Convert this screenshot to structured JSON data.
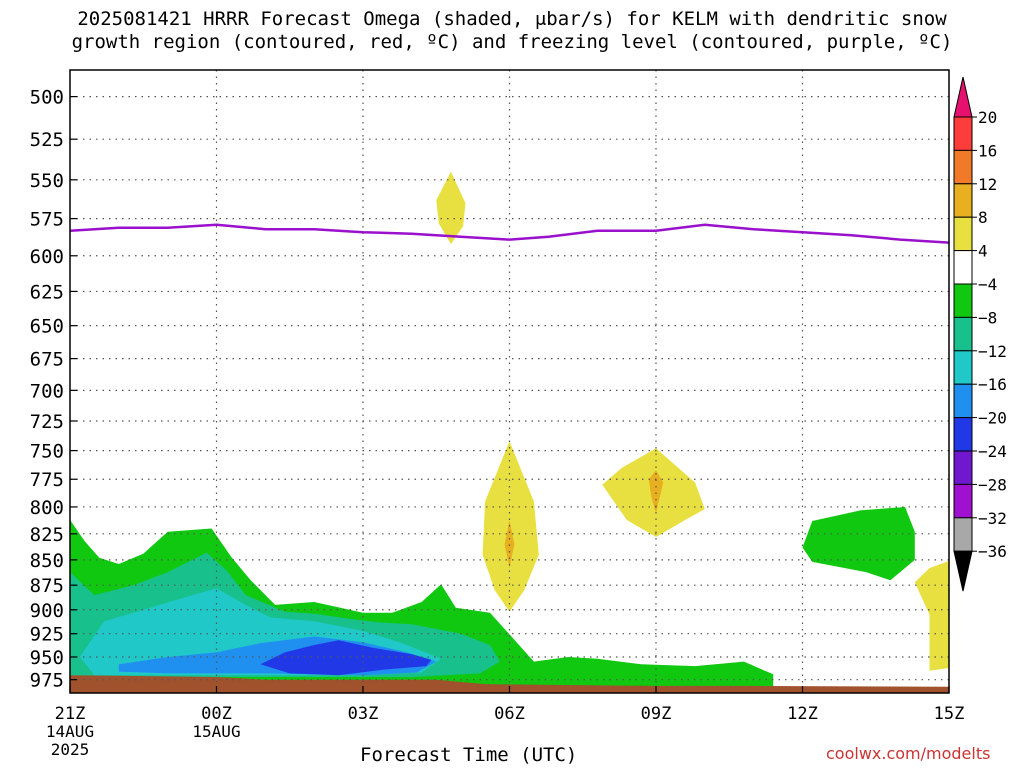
{
  "title": {
    "line1": "2025081421 HRRR Forecast Omega (shaded, μbar/s) for KELM with dendritic snow",
    "line2": "growth region (contoured, red, ºC) and freezing level (contoured, purple, ºC)"
  },
  "credit": "coolwx.com/modelts",
  "chart_data": {
    "type": "heatmap",
    "xlabel": "Forecast Time (UTC)",
    "x_ticks": [
      {
        "hour": 0,
        "label": "21Z",
        "sub": [
          "14AUG",
          "2025"
        ]
      },
      {
        "hour": 3,
        "label": "00Z",
        "sub": [
          "15AUG"
        ]
      },
      {
        "hour": 6,
        "label": "03Z",
        "sub": []
      },
      {
        "hour": 9,
        "label": "06Z",
        "sub": []
      },
      {
        "hour": 12,
        "label": "09Z",
        "sub": []
      },
      {
        "hour": 15,
        "label": "12Z",
        "sub": []
      },
      {
        "hour": 18,
        "label": "15Z",
        "sub": []
      }
    ],
    "xlim": [
      0,
      18
    ],
    "ylabel": "",
    "y_ticks": [
      500,
      525,
      550,
      575,
      600,
      625,
      650,
      675,
      700,
      725,
      750,
      775,
      800,
      825,
      850,
      875,
      900,
      925,
      950,
      975
    ],
    "ylim_hpa": [
      990,
      485
    ],
    "y_scale": "log-pressure",
    "grid": true,
    "colorbar": {
      "labels": [
        "20",
        "16",
        "12",
        "8",
        "4",
        "−4",
        "−8",
        "−12",
        "−16",
        "−20",
        "−24",
        "−28",
        "−32",
        "−36"
      ],
      "levels": [
        24,
        20,
        16,
        12,
        8,
        4,
        -4,
        -8,
        -12,
        -16,
        -20,
        -24,
        -28,
        -32,
        -36
      ],
      "colors": [
        "#e6106e",
        "#ff3c3c",
        "#f07a28",
        "#e8b020",
        "#e8e040",
        "#ffffff",
        "#10c810",
        "#18c08c",
        "#20c8c8",
        "#2090f0",
        "#2038e6",
        "#7018d0",
        "#a010d0",
        "#a8a8a8"
      ]
    },
    "freezing_level": {
      "color": "#9a10cc",
      "points": [
        [
          0,
          583
        ],
        [
          1,
          581
        ],
        [
          2,
          581
        ],
        [
          3,
          579
        ],
        [
          4,
          582
        ],
        [
          5,
          582
        ],
        [
          6,
          584
        ],
        [
          7,
          585
        ],
        [
          8,
          587
        ],
        [
          9,
          589
        ],
        [
          9.8,
          587
        ],
        [
          10.8,
          583
        ],
        [
          12,
          583
        ],
        [
          13,
          579
        ],
        [
          14,
          582
        ],
        [
          16,
          586
        ],
        [
          17,
          589
        ],
        [
          18,
          591
        ]
      ]
    },
    "omega_regions": [
      {
        "level": "-4 to -8",
        "color": "#10c810",
        "points": [
          [
            0,
            812
          ],
          [
            0.3,
            832
          ],
          [
            0.6,
            848
          ],
          [
            1,
            854
          ],
          [
            1.5,
            844
          ],
          [
            2,
            823
          ],
          [
            2.9,
            820
          ],
          [
            3.3,
            847
          ],
          [
            3.7,
            870
          ],
          [
            4.2,
            895
          ],
          [
            5,
            892
          ],
          [
            6,
            903
          ],
          [
            6.6,
            903
          ],
          [
            7.2,
            892
          ],
          [
            7.6,
            874
          ],
          [
            7.9,
            898
          ],
          [
            8.6,
            903
          ],
          [
            9.5,
            955
          ],
          [
            10.2,
            950
          ],
          [
            10.8,
            952
          ],
          [
            11.7,
            958
          ],
          [
            12.8,
            960
          ],
          [
            13.8,
            955
          ],
          [
            14.4,
            969
          ],
          [
            14.4,
            990
          ],
          [
            0,
            990
          ]
        ]
      },
      {
        "level": "-8 to -12",
        "color": "#18c08c",
        "points": [
          [
            0,
            862
          ],
          [
            0.5,
            885
          ],
          [
            1.3,
            875
          ],
          [
            2,
            862
          ],
          [
            2.8,
            843
          ],
          [
            3.2,
            860
          ],
          [
            3.6,
            885
          ],
          [
            4.4,
            902
          ],
          [
            5,
            904
          ],
          [
            5.8,
            910
          ],
          [
            6.3,
            913
          ],
          [
            7,
            915
          ],
          [
            8,
            925
          ],
          [
            8.6,
            937
          ],
          [
            8.8,
            955
          ],
          [
            8.4,
            968
          ],
          [
            7,
            972
          ],
          [
            5,
            972
          ],
          [
            3,
            972
          ],
          [
            0,
            972
          ]
        ]
      },
      {
        "level": "-12 to -16",
        "color": "#20c8c8",
        "points": [
          [
            0.2,
            950
          ],
          [
            0.7,
            912
          ],
          [
            1.5,
            900
          ],
          [
            2.3,
            888
          ],
          [
            3,
            878
          ],
          [
            3.6,
            895
          ],
          [
            4.1,
            908
          ],
          [
            5,
            912
          ],
          [
            6,
            922
          ],
          [
            6.8,
            935
          ],
          [
            7.6,
            952
          ],
          [
            7.2,
            967
          ],
          [
            6,
            970
          ],
          [
            4,
            970
          ],
          [
            2,
            970
          ],
          [
            0.5,
            970
          ]
        ]
      },
      {
        "level": "-16 to -20",
        "color": "#2090f0",
        "points": [
          [
            1,
            958
          ],
          [
            2,
            950
          ],
          [
            3,
            945
          ],
          [
            3.9,
            935
          ],
          [
            5,
            928
          ],
          [
            6,
            934
          ],
          [
            6.9,
            945
          ],
          [
            7.5,
            955
          ],
          [
            7.1,
            967
          ],
          [
            6,
            970
          ],
          [
            4,
            968
          ],
          [
            2,
            968
          ],
          [
            1,
            966
          ]
        ]
      },
      {
        "level": "-20 to -24",
        "color": "#2038e6",
        "points": [
          [
            3.9,
            958
          ],
          [
            4.4,
            945
          ],
          [
            5,
            937
          ],
          [
            5.5,
            932
          ],
          [
            6.2,
            940
          ],
          [
            7,
            947
          ],
          [
            7.4,
            953
          ],
          [
            7.3,
            960
          ],
          [
            6.4,
            964
          ],
          [
            5.5,
            970
          ],
          [
            4.5,
            968
          ]
        ]
      },
      {
        "level": "4 to 8",
        "color": "#e8e040",
        "points": [
          [
            7.8,
            545
          ],
          [
            8.1,
            565
          ],
          [
            8.05,
            580
          ],
          [
            7.8,
            592
          ],
          [
            7.55,
            578
          ],
          [
            7.5,
            563
          ]
        ]
      },
      {
        "level": "4 to 8",
        "color": "#e8e040",
        "points": [
          [
            9,
            742
          ],
          [
            9.5,
            795
          ],
          [
            9.6,
            845
          ],
          [
            9.3,
            880
          ],
          [
            9,
            902
          ],
          [
            8.7,
            880
          ],
          [
            8.45,
            845
          ],
          [
            8.5,
            795
          ]
        ]
      },
      {
        "level": "4 to 8",
        "color": "#e8e040",
        "points": [
          [
            12,
            748
          ],
          [
            12.8,
            778
          ],
          [
            13,
            802
          ],
          [
            12.6,
            812
          ],
          [
            12,
            828
          ],
          [
            11.4,
            812
          ],
          [
            10.9,
            780
          ],
          [
            11.3,
            765
          ]
        ]
      },
      {
        "level": "4 to 8",
        "color": "#e8e040",
        "points": [
          [
            18,
            851
          ],
          [
            17.6,
            858
          ],
          [
            17.3,
            872
          ],
          [
            17.6,
            905
          ],
          [
            17.6,
            965
          ],
          [
            18,
            962
          ]
        ]
      },
      {
        "level": "8 to 12",
        "color": "#e8b020",
        "points": [
          [
            9,
            812
          ],
          [
            9.1,
            835
          ],
          [
            9,
            858
          ],
          [
            8.9,
            835
          ]
        ]
      },
      {
        "level": "8 to 12",
        "color": "#e8b020",
        "points": [
          [
            12,
            767
          ],
          [
            12.15,
            778
          ],
          [
            12.05,
            796
          ],
          [
            12,
            806
          ],
          [
            11.9,
            790
          ],
          [
            11.85,
            775
          ]
        ]
      },
      {
        "level": "-4 to -8",
        "color": "#10c810",
        "points": [
          [
            15.2,
            813
          ],
          [
            16.2,
            803
          ],
          [
            17.1,
            800
          ],
          [
            17.3,
            823
          ],
          [
            17.3,
            850
          ],
          [
            16.8,
            870
          ],
          [
            16.3,
            862
          ],
          [
            15.2,
            852
          ],
          [
            15.0,
            838
          ]
        ]
      }
    ],
    "surface": {
      "color": "#a0522d",
      "points": [
        [
          0,
          970
        ],
        [
          3,
          972
        ],
        [
          4,
          975
        ],
        [
          7.5,
          975
        ],
        [
          8.5,
          980
        ],
        [
          12,
          982
        ],
        [
          14,
          982
        ],
        [
          18,
          983
        ],
        [
          18,
          990
        ],
        [
          0,
          990
        ]
      ]
    }
  }
}
